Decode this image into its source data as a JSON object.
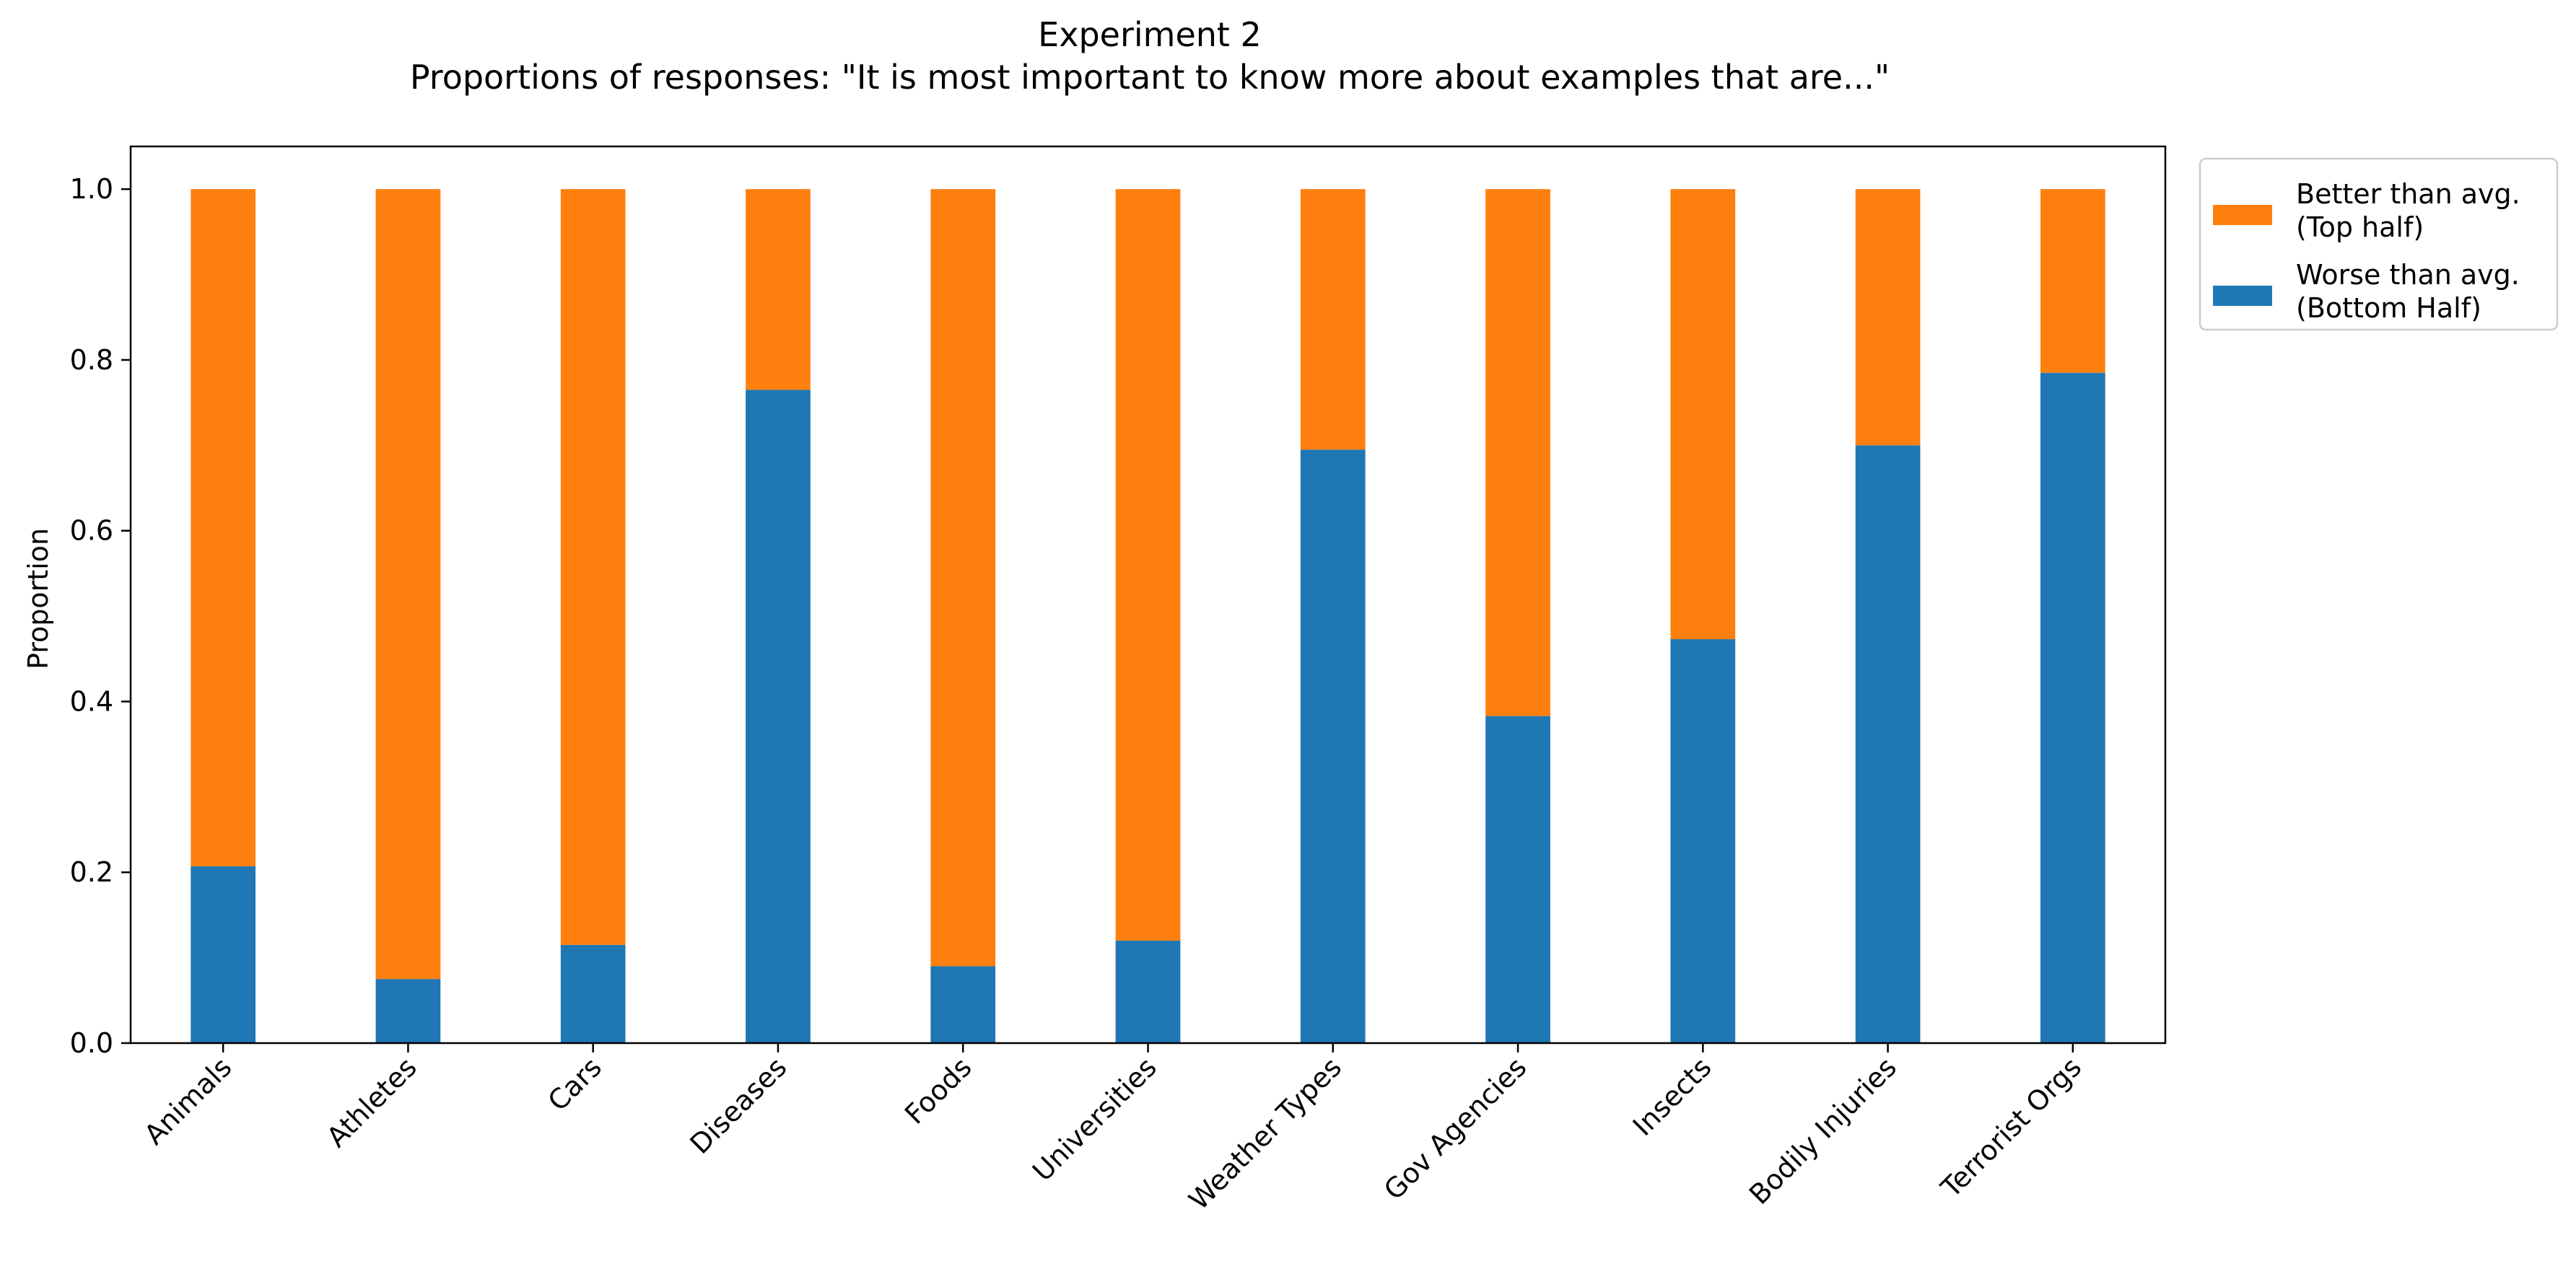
{
  "chart_data": {
    "type": "bar",
    "stacked": true,
    "title": "Experiment 2",
    "subtitle": "Proportions of responses: \"It is most important to know more about examples that are...\"",
    "xlabel": "",
    "ylabel": "Proportion",
    "ylim": [
      0,
      1.05
    ],
    "yticks": [
      "0.0",
      "0.2",
      "0.4",
      "0.6",
      "0.8",
      "1.0"
    ],
    "categories": [
      "Animals",
      "Athletes",
      "Cars",
      "Diseases",
      "Foods",
      "Universities",
      "Weather Types",
      "Gov Agencies",
      "Insects",
      "Bodily Injuries",
      "Terrorist Orgs"
    ],
    "series": [
      {
        "name": "Worse than avg. (Bottom Half)",
        "legend_lines": [
          "Worse than avg.",
          "(Bottom Half)"
        ],
        "color": "#1f77b4",
        "values": [
          0.207,
          0.075,
          0.115,
          0.765,
          0.09,
          0.12,
          0.695,
          0.383,
          0.473,
          0.7,
          0.785
        ]
      },
      {
        "name": "Better than avg. (Top half)",
        "legend_lines": [
          "Better than avg.",
          "(Top half)"
        ],
        "color": "#ff7f0e",
        "values": [
          0.793,
          0.925,
          0.885,
          0.235,
          0.91,
          0.88,
          0.305,
          0.617,
          0.527,
          0.3,
          0.215
        ]
      }
    ],
    "legend_position": "upper-right-outside"
  }
}
